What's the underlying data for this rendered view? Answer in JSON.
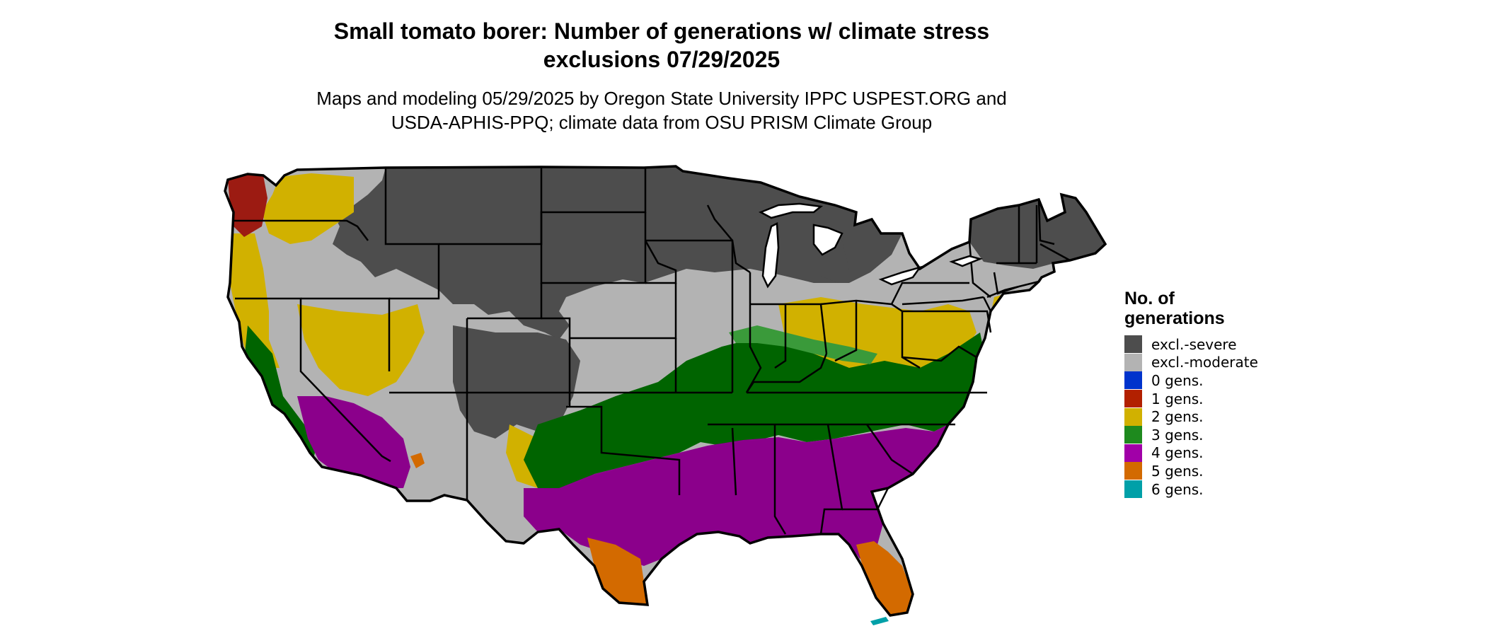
{
  "title_line1": "Small tomato borer: Number of generations w/ climate stress",
  "title_line2": "exclusions 07/29/2025",
  "subtitle_line1": "Maps and modeling 05/29/2025 by Oregon State University IPPC USPEST.ORG and",
  "subtitle_line2": "USDA-APHIS-PPQ; climate data from OSU PRISM Climate Group",
  "legend": {
    "title_line1": "No. of",
    "title_line2": "generations",
    "items": [
      {
        "label": "excl.-severe",
        "color": "#4d4d4d"
      },
      {
        "label": "excl.-moderate",
        "color": "#b3b3b3"
      },
      {
        "label": "0 gens.",
        "color": "#0033cc"
      },
      {
        "label": "1 gens.",
        "color": "#b22000"
      },
      {
        "label": "2 gens.",
        "color": "#d1b100"
      },
      {
        "label": "3 gens.",
        "color": "#1e8a1e"
      },
      {
        "label": "4 gens.",
        "color": "#a100a8"
      },
      {
        "label": "5 gens.",
        "color": "#d36a00"
      },
      {
        "label": "6 gens.",
        "color": "#00a0a8"
      }
    ]
  },
  "map_colors": {
    "severe": "#4d4d4d",
    "moderate": "#b3b3b3",
    "one": "#9c1b12",
    "two": "#d1b100",
    "three": "#006400",
    "three_light": "#3a9a3a",
    "four": "#8b008b",
    "four_light": "#b200b2",
    "five": "#d36a00",
    "six": "#00a0a8"
  }
}
